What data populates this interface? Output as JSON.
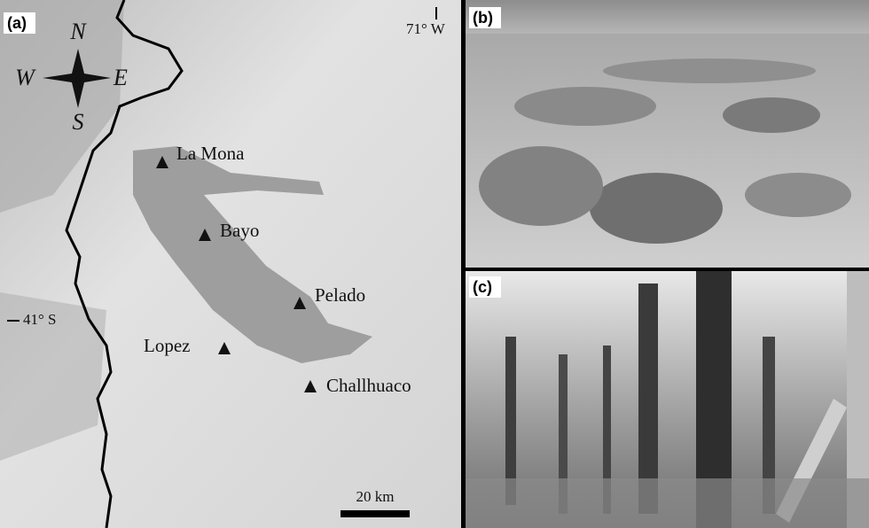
{
  "panels": [
    {
      "label": "(a)"
    },
    {
      "label": "(b)"
    },
    {
      "label": "(c)"
    }
  ],
  "map": {
    "compass": {
      "north": "N",
      "south": "S",
      "west": "W",
      "east": "E"
    },
    "longitude_label": "71° W",
    "latitude_label": "41° S",
    "sites": [
      "La Mona",
      "Bayo",
      "Pelado",
      "Lopez",
      "Challhuaco"
    ],
    "scale_bar": "20 km"
  }
}
